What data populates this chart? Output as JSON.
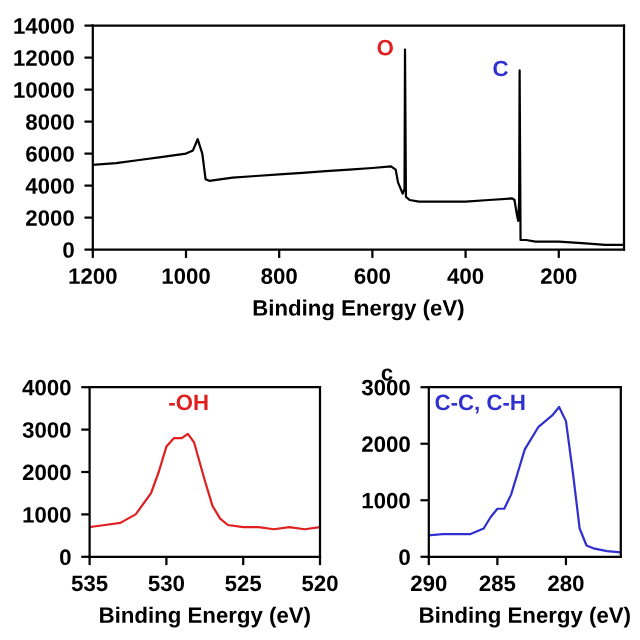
{
  "chart_data": [
    {
      "type": "line",
      "xlabel": "Binding Energy (eV)",
      "xlim": [
        1200,
        60
      ],
      "xticks": [
        1200,
        1000,
        800,
        600,
        400,
        200
      ],
      "ylim": [
        0,
        14000
      ],
      "yticks": [
        0,
        2000,
        4000,
        6000,
        8000,
        10000,
        12000,
        14000
      ],
      "annotations": [
        {
          "text": "O",
          "x": 530,
          "y": 12500
        },
        {
          "text": "C",
          "x": 284,
          "y": 11200
        }
      ],
      "series": [
        {
          "color": "#000000",
          "x": [
            1200,
            1150,
            1100,
            1050,
            1000,
            985,
            975,
            965,
            958,
            950,
            900,
            850,
            800,
            750,
            700,
            650,
            600,
            560,
            550,
            545,
            535,
            531,
            530,
            528,
            520,
            500,
            450,
            400,
            350,
            300,
            295,
            290,
            287,
            285,
            284,
            282,
            270,
            250,
            200,
            150,
            100,
            60
          ],
          "values": [
            5300,
            5400,
            5600,
            5800,
            6000,
            6200,
            6900,
            6000,
            4400,
            4300,
            4500,
            4600,
            4700,
            4800,
            4900,
            5000,
            5100,
            5200,
            5000,
            4200,
            3500,
            3800,
            12500,
            3300,
            3100,
            3000,
            3000,
            3000,
            3100,
            3200,
            3100,
            2200,
            1800,
            3000,
            11200,
            600,
            600,
            500,
            500,
            400,
            300,
            300
          ]
        }
      ]
    },
    {
      "type": "line",
      "xlabel": "Binding Energy (eV)",
      "xlim": [
        535,
        520
      ],
      "xticks": [
        535,
        530,
        525,
        520
      ],
      "ylim": [
        0,
        4000
      ],
      "yticks": [
        0,
        1000,
        2000,
        3000,
        4000
      ],
      "annotations": [
        "-OH"
      ],
      "series": [
        {
          "color": "#e02020",
          "x": [
            535,
            534,
            533,
            532,
            531,
            530.5,
            530,
            529.5,
            529,
            528.6,
            528.2,
            527.5,
            527,
            526.5,
            526,
            525,
            524,
            523,
            522,
            521,
            520
          ],
          "values": [
            700,
            750,
            800,
            1000,
            1500,
            2000,
            2600,
            2800,
            2800,
            2900,
            2700,
            1800,
            1200,
            900,
            750,
            700,
            700,
            650,
            700,
            650,
            700
          ]
        }
      ]
    },
    {
      "type": "line",
      "xlabel": "Binding Energy (eV)",
      "xlim": [
        290,
        276
      ],
      "xticks": [
        290,
        285,
        280
      ],
      "ylim": [
        0,
        3000
      ],
      "yticks": [
        0,
        1000,
        2000,
        3000
      ],
      "annotations": [
        "c",
        "C-C, C-H"
      ],
      "series": [
        {
          "color": "#3030d0",
          "x": [
            290,
            289,
            288,
            287,
            286,
            285.5,
            285,
            284.5,
            284,
            283.5,
            283,
            282,
            281,
            280.5,
            280,
            279.5,
            279,
            278.5,
            278,
            277,
            276
          ],
          "values": [
            380,
            400,
            400,
            400,
            500,
            700,
            850,
            850,
            1100,
            1500,
            1900,
            2300,
            2500,
            2650,
            2400,
            1500,
            500,
            200,
            150,
            100,
            80
          ]
        }
      ]
    }
  ]
}
